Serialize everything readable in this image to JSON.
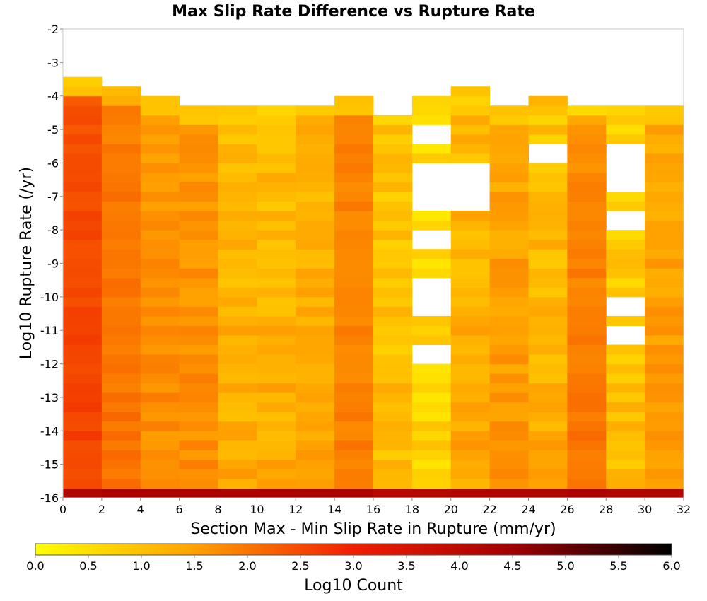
{
  "chart_data": {
    "type": "heatmap",
    "title": "Max Slip Rate Difference vs Rupture Rate",
    "xlabel": "Section Max - Min Slip Rate in Rupture (mm/yr)",
    "ylabel": "Log10 Rupture Rate (/yr)",
    "xlim": [
      0,
      32
    ],
    "ylim": [
      -16,
      -2
    ],
    "x_ticks": [
      "0",
      "2",
      "4",
      "6",
      "8",
      "10",
      "12",
      "14",
      "16",
      "18",
      "20",
      "22",
      "24",
      "26",
      "28",
      "30",
      "32"
    ],
    "y_ticks": [
      "-2",
      "-3",
      "-4",
      "-5",
      "-6",
      "-7",
      "-8",
      "-9",
      "-10",
      "-11",
      "-12",
      "-13",
      "-14",
      "-15",
      "-16"
    ],
    "x_bin_width": 2,
    "y_bin_height": 0.2857,
    "colorbar": {
      "label": "Log10 Count",
      "range": [
        0,
        6
      ],
      "ticks": [
        "0.0",
        "0.5",
        "1.0",
        "1.5",
        "2.0",
        "2.5",
        "3.0",
        "3.5",
        "4.0",
        "4.5",
        "5.0",
        "5.5",
        "6.0"
      ],
      "colors": [
        "#ffff00",
        "#ffa000",
        "#f01e00",
        "#a00000",
        "#000000"
      ]
    },
    "columns": [
      {
        "x": 1,
        "ymax": -3.28,
        "base": 2.4,
        "trend": 0.2,
        "var": 0.15,
        "gaps": []
      },
      {
        "x": 3,
        "ymax": -3.57,
        "base": 1.9,
        "trend": 0.15,
        "var": 0.15,
        "gaps": []
      },
      {
        "x": 5,
        "ymax": -3.85,
        "base": 1.6,
        "trend": 0.15,
        "var": 0.2,
        "gaps": []
      },
      {
        "x": 7,
        "ymax": -4.14,
        "base": 1.55,
        "trend": 0.2,
        "var": 0.2,
        "gaps": []
      },
      {
        "x": 9,
        "ymax": -4.14,
        "base": 1.05,
        "trend": 0.3,
        "var": 0.3,
        "gaps": []
      },
      {
        "x": 11,
        "ymax": -4.14,
        "base": 1.05,
        "trend": 0.3,
        "var": 0.3,
        "gaps": []
      },
      {
        "x": 13,
        "ymax": -4.14,
        "base": 1.2,
        "trend": 0.2,
        "var": 0.25,
        "gaps": []
      },
      {
        "x": 15,
        "ymax": -3.85,
        "base": 1.8,
        "trend": 0.1,
        "var": 0.15,
        "gaps": []
      },
      {
        "x": 17,
        "ymax": -4.42,
        "base": 0.9,
        "trend": 0.2,
        "var": 0.3,
        "gaps": []
      },
      {
        "x": 19,
        "ymax": -3.85,
        "base": 0.6,
        "trend": 0.1,
        "var": 0.3,
        "gaps": [
          [
            -5.57,
            -5.0
          ],
          [
            -6.43,
            -6.14
          ],
          [
            -7.29,
            -6.71
          ],
          [
            -8.71,
            -7.86
          ],
          [
            -10.43,
            -9.57
          ],
          [
            -11.86,
            -11.29
          ]
        ]
      },
      {
        "x": 21,
        "ymax": -3.57,
        "base": 1.05,
        "trend": 0.4,
        "var": 0.3,
        "gaps": [
          [
            -7.29,
            -6.14
          ]
        ]
      },
      {
        "x": 23,
        "ymax": -4.14,
        "base": 1.4,
        "trend": 0.2,
        "var": 0.25,
        "gaps": []
      },
      {
        "x": 25,
        "ymax": -3.85,
        "base": 0.9,
        "trend": 0.5,
        "var": 0.3,
        "gaps": [
          [
            -5.86,
            -5.57
          ]
        ]
      },
      {
        "x": 27,
        "ymax": -4.14,
        "base": 1.7,
        "trend": 0.35,
        "var": 0.15,
        "gaps": []
      },
      {
        "x": 29,
        "ymax": -4.14,
        "base": 0.7,
        "trend": 0.4,
        "var": 0.3,
        "gaps": [
          [
            -7.0,
            -5.57
          ],
          [
            -7.86,
            -7.29
          ],
          [
            -10.71,
            -10.14
          ],
          [
            -11.29,
            -11.0
          ]
        ]
      },
      {
        "x": 31,
        "ymax": -4.14,
        "base": 1.35,
        "trend": 0.2,
        "var": 0.25,
        "gaps": []
      }
    ],
    "bottom_row": {
      "y": -15.86,
      "values_by_column": [
        4.2,
        4.3,
        4.3,
        4.3,
        4.3,
        4.3,
        4.3,
        4.3,
        4.1,
        4.1,
        4.2,
        4.2,
        4.2,
        4.3,
        4.2,
        4.2
      ]
    }
  }
}
